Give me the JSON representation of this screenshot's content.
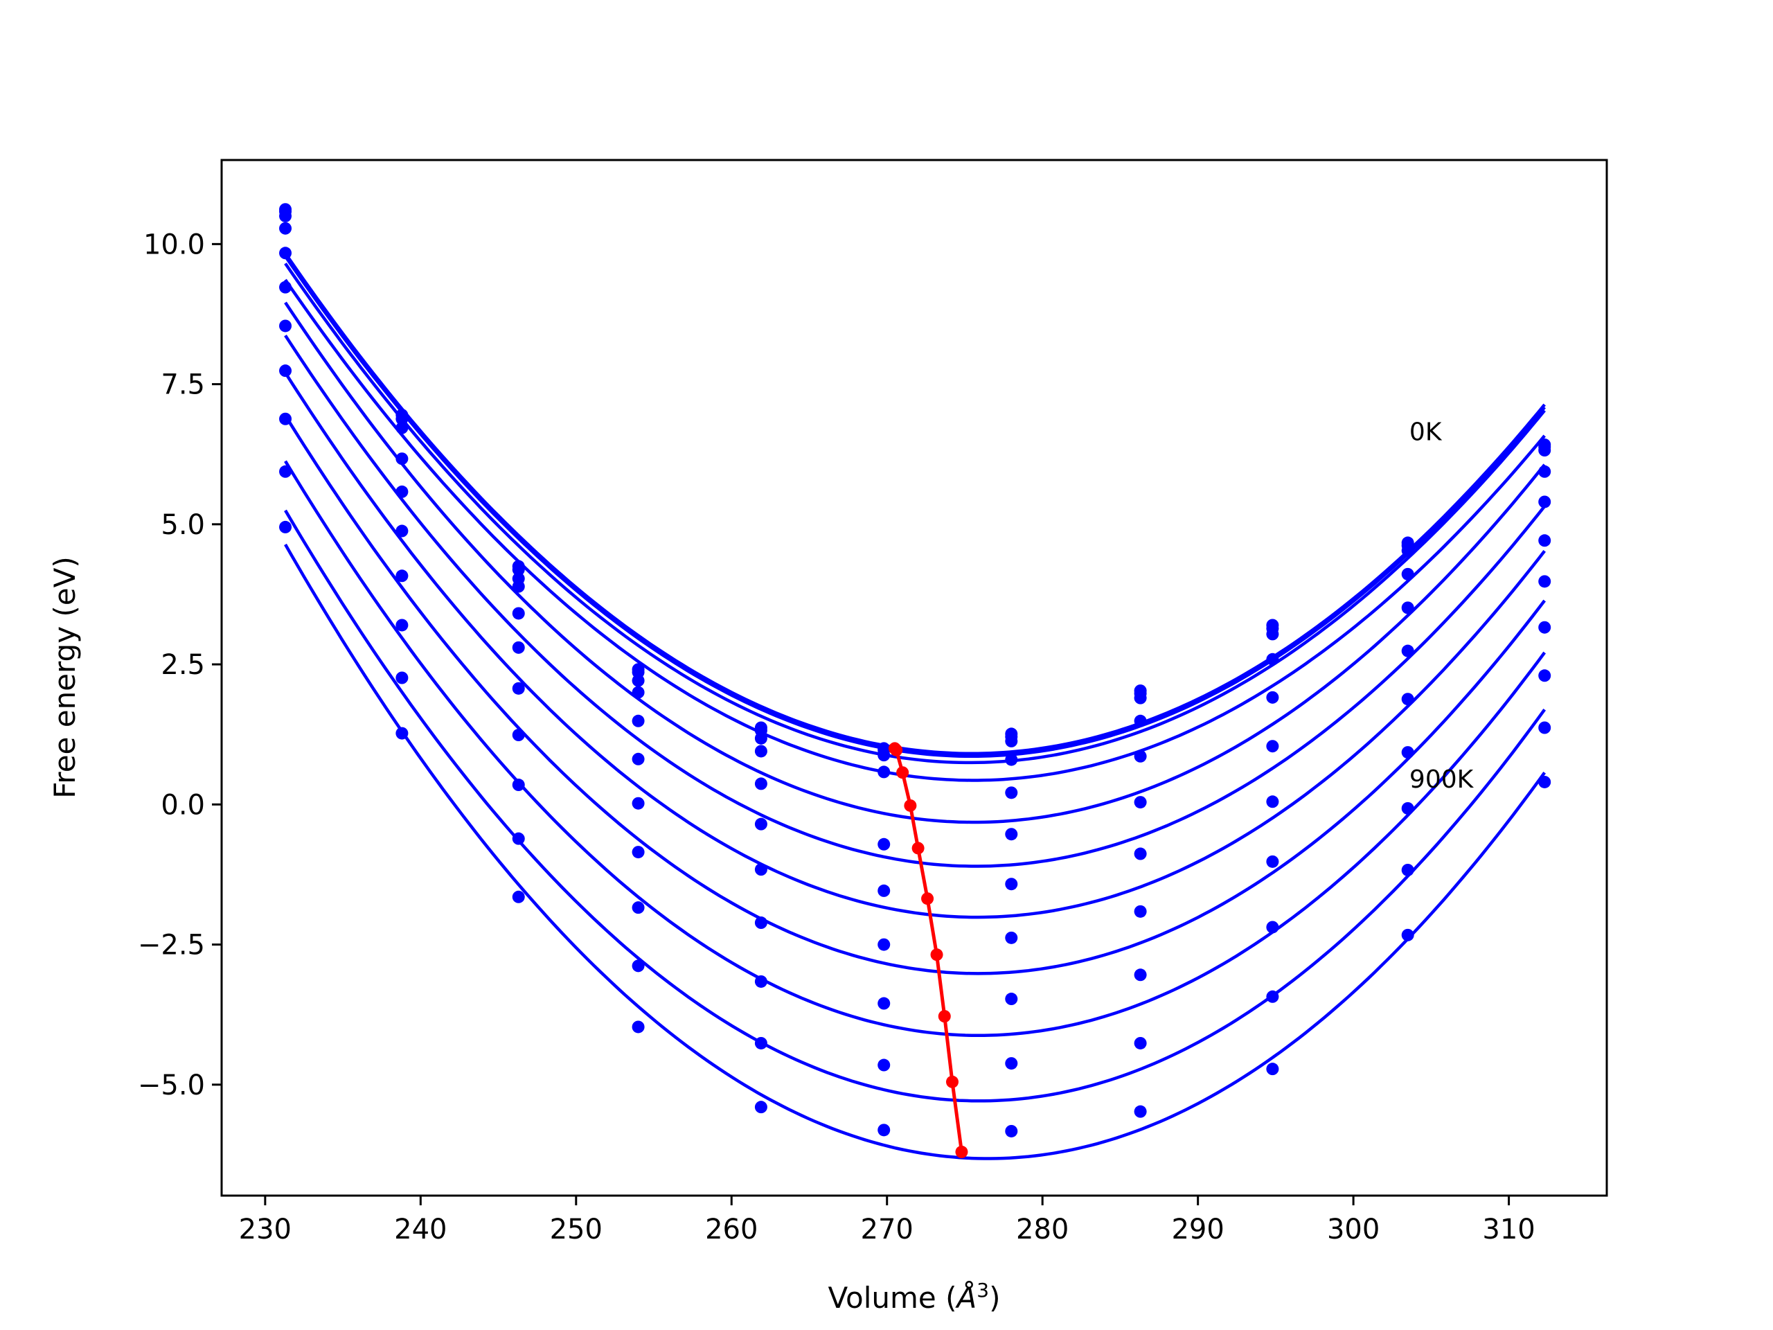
{
  "chart_data": {
    "type": "scatter",
    "title": "",
    "xlabel_prefix": "Volume (",
    "xlabel_unit": "Å",
    "xlabel_exp": "3",
    "xlabel_suffix": ")",
    "ylabel": "Free energy (eV)",
    "xlim": [
      227.2,
      316.3
    ],
    "ylim": [
      -6.98,
      11.5
    ],
    "xticks": [
      230,
      240,
      250,
      260,
      270,
      280,
      290,
      300,
      310
    ],
    "yticks": [
      -5.0,
      -2.5,
      0.0,
      2.5,
      5.0,
      7.5,
      10.0
    ],
    "ytick_labels": [
      "−5.0",
      "−2.5",
      "0.0",
      "2.5",
      "5.0",
      "7.5",
      "10.0"
    ],
    "grid": false,
    "annotations": [
      {
        "text": "0K",
        "x": 303.6,
        "y": 6.5
      },
      {
        "text": "900K",
        "x": 303.6,
        "y": 0.3
      }
    ],
    "colors": {
      "series": "#0000ff",
      "equilibrium": "#ff0000",
      "axes": "#000000"
    },
    "x": [
      231.3,
      238.8,
      246.3,
      254.0,
      261.9,
      269.8,
      278.0,
      286.3,
      294.8,
      303.5,
      312.3
    ],
    "series": [
      {
        "values": [
          10.62,
          6.95,
          4.25,
          2.41,
          1.37,
          1.0,
          1.26,
          2.03,
          3.2,
          4.67,
          6.42
        ]
      },
      {
        "values": [
          10.58,
          6.88,
          4.19,
          2.36,
          1.32,
          0.97,
          1.21,
          1.98,
          3.14,
          4.62,
          6.38
        ]
      },
      {
        "values": [
          10.5,
          6.72,
          4.03,
          2.21,
          1.18,
          0.88,
          1.13,
          1.9,
          3.04,
          4.53,
          6.32
        ]
      },
      {
        "values": [
          10.28,
          6.17,
          3.89,
          2.0,
          0.95,
          0.58,
          0.8,
          1.49,
          2.59,
          4.11,
          5.94
        ]
      },
      {
        "values": [
          9.84,
          5.58,
          3.41,
          1.49,
          0.37,
          -0.71,
          0.21,
          0.86,
          1.91,
          3.51,
          5.4
        ]
      },
      {
        "values": [
          9.23,
          4.88,
          2.8,
          0.81,
          -0.35,
          -1.54,
          -0.53,
          0.04,
          1.04,
          2.74,
          4.71
        ]
      },
      {
        "values": [
          8.54,
          4.08,
          2.07,
          0.02,
          -1.16,
          -2.5,
          -1.42,
          -0.88,
          0.05,
          1.88,
          3.98
        ]
      },
      {
        "values": [
          7.74,
          3.2,
          1.24,
          -0.85,
          -2.11,
          -3.55,
          -2.38,
          -1.91,
          -1.02,
          0.93,
          3.16
        ]
      },
      {
        "values": [
          6.88,
          2.26,
          0.35,
          -1.84,
          -3.16,
          -4.65,
          -3.47,
          -3.04,
          -2.19,
          -0.07,
          2.3
        ]
      },
      {
        "values": [
          5.94,
          1.27,
          -0.61,
          -2.88,
          -4.26,
          -5.81,
          -4.62,
          -4.26,
          -3.43,
          -1.17,
          1.37
        ]
      },
      {
        "values": [
          4.95,
          null,
          -1.65,
          -3.97,
          -5.4,
          null,
          -5.83,
          -5.48,
          -4.72,
          -2.33,
          0.4
        ]
      }
    ],
    "equilibrium": {
      "x": [
        270.5,
        270.6,
        271.0,
        271.5,
        272.0,
        272.6,
        273.2,
        273.7,
        274.2,
        274.8
      ],
      "y": [
        1.0,
        0.97,
        0.57,
        -0.02,
        -0.78,
        -1.68,
        -2.68,
        -3.78,
        -4.95,
        -6.2
      ]
    }
  }
}
